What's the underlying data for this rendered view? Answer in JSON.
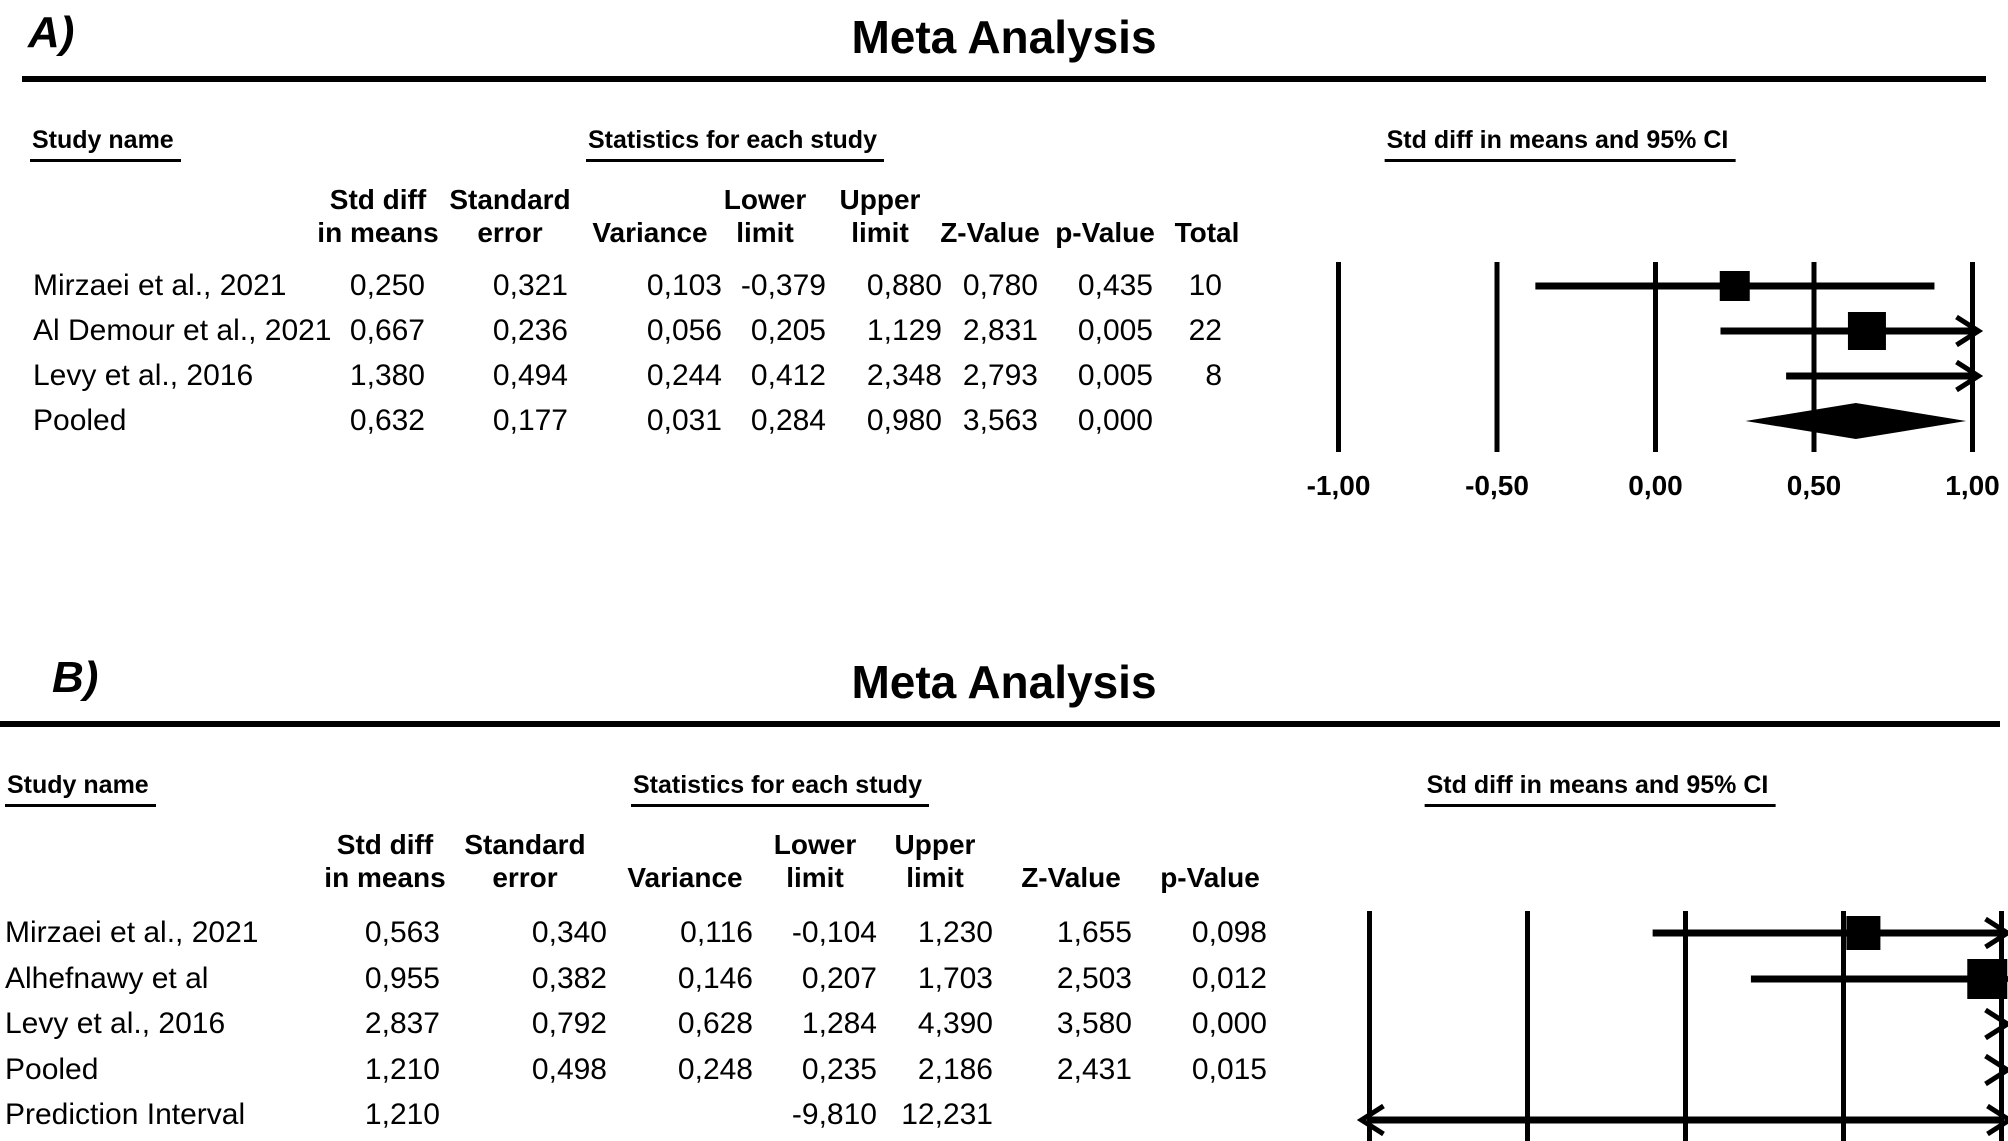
{
  "figure": {
    "panels": [
      {
        "panel_label": "A)",
        "title": "Meta Analysis",
        "study_col_header": "Study name",
        "stats_group_header": "Statistics for each study",
        "plot_group_header": "Std diff in means and 95% CI",
        "columns": [
          {
            "line1": "Std diff",
            "line2": "in means",
            "key": "std_diff_in_means"
          },
          {
            "line1": "Standard",
            "line2": "error",
            "key": "standard_error"
          },
          {
            "line1": "",
            "line2": "Variance",
            "key": "variance"
          },
          {
            "line1": "Lower",
            "line2": "limit",
            "key": "lower_limit"
          },
          {
            "line1": "Upper",
            "line2": "limit",
            "key": "upper_limit"
          },
          {
            "line1": "",
            "line2": "Z-Value",
            "key": "z_value"
          },
          {
            "line1": "",
            "line2": "p-Value",
            "key": "p_value"
          },
          {
            "line1": "",
            "line2": "Total",
            "key": "total"
          }
        ],
        "axis_tick_labels": [
          "-1,00",
          "-0,50",
          "0,00",
          "0,50",
          "1,00"
        ]
      },
      {
        "panel_label": "B)",
        "title": "Meta Analysis",
        "study_col_header": "Study name",
        "stats_group_header": "Statistics for each study",
        "plot_group_header": "Std diff in means and 95% CI",
        "columns": [
          {
            "line1": "Std diff",
            "line2": "in means",
            "key": "std_diff_in_means"
          },
          {
            "line1": "Standard",
            "line2": "error",
            "key": "standard_error"
          },
          {
            "line1": "",
            "line2": "Variance",
            "key": "variance"
          },
          {
            "line1": "Lower",
            "line2": "limit",
            "key": "lower_limit"
          },
          {
            "line1": "Upper",
            "line2": "limit",
            "key": "upper_limit"
          },
          {
            "line1": "",
            "line2": "Z-Value",
            "key": "z_value"
          },
          {
            "line1": "",
            "line2": "p-Value",
            "key": "p_value"
          }
        ],
        "axis_tick_labels": []
      }
    ],
    "colors": {
      "ink": "#000000",
      "background": "#ffffff"
    },
    "decimal_separator": ","
  },
  "chart_data": [
    {
      "type": "scatter",
      "subtype": "forest-plot",
      "panel": "A",
      "title": "Meta Analysis",
      "xlabel": "Std diff in means and 95% CI",
      "xlim": [
        -1.0,
        1.0
      ],
      "xticks": [
        -1.0,
        -0.5,
        0.0,
        0.5,
        1.0
      ],
      "xtick_labels_visible": true,
      "grid": "vertical-reference-lines",
      "series": [
        {
          "name": "Mirzaei et al., 2021",
          "std_diff_in_means": 0.25,
          "standard_error": 0.321,
          "variance": 0.103,
          "lower_limit": -0.379,
          "upper_limit": 0.88,
          "z_value": 0.78,
          "p_value": 0.435,
          "total": 10,
          "marker": "square"
        },
        {
          "name": "Al Demour et al., 2021",
          "std_diff_in_means": 0.667,
          "standard_error": 0.236,
          "variance": 0.056,
          "lower_limit": 0.205,
          "upper_limit": 1.129,
          "z_value": 2.831,
          "p_value": 0.005,
          "total": 22,
          "marker": "square"
        },
        {
          "name": "Levy et al., 2016",
          "std_diff_in_means": 1.38,
          "standard_error": 0.494,
          "variance": 0.244,
          "lower_limit": 0.412,
          "upper_limit": 2.348,
          "z_value": 2.793,
          "p_value": 0.005,
          "total": 8,
          "marker": "square"
        },
        {
          "name": "Pooled",
          "std_diff_in_means": 0.632,
          "standard_error": 0.177,
          "variance": 0.031,
          "lower_limit": 0.284,
          "upper_limit": 0.98,
          "z_value": 3.563,
          "p_value": 0.0,
          "total": null,
          "marker": "diamond"
        }
      ]
    },
    {
      "type": "scatter",
      "subtype": "forest-plot",
      "panel": "B",
      "title": "Meta Analysis",
      "xlabel": "Std diff in means and 95% CI",
      "xlim": [
        -1.0,
        1.0
      ],
      "xticks": [
        -1.0,
        -0.5,
        0.0,
        0.5,
        1.0
      ],
      "xtick_labels_visible": false,
      "grid": "vertical-reference-lines",
      "series": [
        {
          "name": "Mirzaei et al., 2021",
          "std_diff_in_means": 0.563,
          "standard_error": 0.34,
          "variance": 0.116,
          "lower_limit": -0.104,
          "upper_limit": 1.23,
          "z_value": 1.655,
          "p_value": 0.098,
          "marker": "square"
        },
        {
          "name": "Alhefnawy et al",
          "std_diff_in_means": 0.955,
          "standard_error": 0.382,
          "variance": 0.146,
          "lower_limit": 0.207,
          "upper_limit": 1.703,
          "z_value": 2.503,
          "p_value": 0.012,
          "marker": "square"
        },
        {
          "name": "Levy et al., 2016",
          "std_diff_in_means": 2.837,
          "standard_error": 0.792,
          "variance": 0.628,
          "lower_limit": 1.284,
          "upper_limit": 4.39,
          "z_value": 3.58,
          "p_value": 0.0,
          "marker": "square"
        },
        {
          "name": "Pooled",
          "std_diff_in_means": 1.21,
          "standard_error": 0.498,
          "variance": 0.248,
          "lower_limit": 0.235,
          "upper_limit": 2.186,
          "z_value": 2.431,
          "p_value": 0.015,
          "marker": "diamond"
        },
        {
          "name": "Prediction Interval",
          "std_diff_in_means": 1.21,
          "standard_error": null,
          "variance": null,
          "lower_limit": -9.81,
          "upper_limit": 12.231,
          "z_value": null,
          "p_value": null,
          "marker": "prediction-arrow-line"
        }
      ]
    }
  ]
}
